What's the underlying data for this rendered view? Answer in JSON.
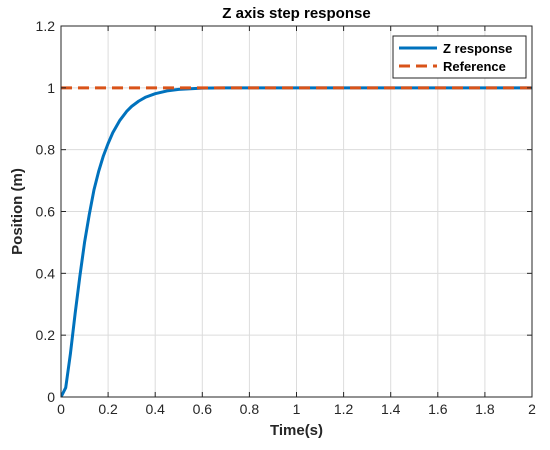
{
  "chart_data": {
    "type": "line",
    "title": "Z axis step response",
    "xlabel": "Time(s)",
    "ylabel": "Position (m)",
    "xlim": [
      0,
      2
    ],
    "ylim": [
      0,
      1.2
    ],
    "x_ticks": [
      0,
      0.2,
      0.4,
      0.6,
      0.8,
      1,
      1.2,
      1.4,
      1.6,
      1.8,
      2
    ],
    "x_tick_labels": [
      "0",
      "0.2",
      "0.4",
      "0.6",
      "0.8",
      "1",
      "1.2",
      "1.4",
      "1.6",
      "1.8",
      "2"
    ],
    "y_ticks": [
      0,
      0.2,
      0.4,
      0.6,
      0.8,
      1,
      1.2
    ],
    "y_tick_labels": [
      "0",
      "0.2",
      "0.4",
      "0.6",
      "0.8",
      "1",
      "1.2"
    ],
    "grid": true,
    "legend_position": "top-right",
    "series": [
      {
        "name": "Z response",
        "color": "#0072BD",
        "style": "solid",
        "x": [
          0,
          0.02,
          0.04,
          0.06,
          0.08,
          0.1,
          0.12,
          0.14,
          0.16,
          0.18,
          0.2,
          0.22,
          0.25,
          0.28,
          0.3,
          0.33,
          0.36,
          0.4,
          0.45,
          0.5,
          0.55,
          0.6,
          0.7,
          0.8,
          1.0,
          1.2,
          1.4,
          1.6,
          1.8,
          2.0
        ],
        "y": [
          0,
          0.03,
          0.14,
          0.27,
          0.39,
          0.5,
          0.59,
          0.67,
          0.73,
          0.78,
          0.82,
          0.855,
          0.895,
          0.925,
          0.94,
          0.957,
          0.97,
          0.981,
          0.99,
          0.995,
          0.997,
          0.999,
          1.0,
          1.0,
          1.0,
          1.0,
          1.0,
          1.0,
          1.0,
          1.0
        ]
      },
      {
        "name": "Reference",
        "color": "#D95319",
        "style": "dashed",
        "x": [
          0,
          2
        ],
        "y": [
          1,
          1
        ]
      }
    ]
  }
}
